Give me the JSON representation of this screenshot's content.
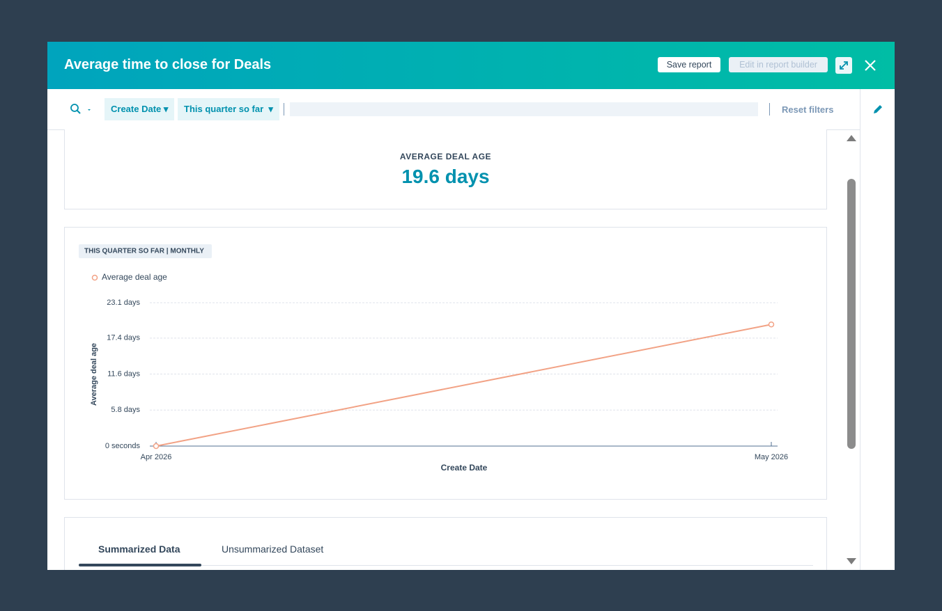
{
  "header": {
    "title": "Average time to close for Deals",
    "save": "Save report",
    "edit": "Edit in report builder"
  },
  "filters": {
    "property": "Create Date",
    "range": "This quarter so far",
    "reset": "Reset filters"
  },
  "kpi": {
    "label": "AVERAGE DEAL AGE",
    "value": "19.6 days"
  },
  "chart_data": {
    "type": "line",
    "badge": "THIS QUARTER SO FAR | MONTHLY",
    "categories": [
      "Apr 2026",
      "May 2026"
    ],
    "series": [
      {
        "name": "Average deal age",
        "color": "#f2a285",
        "values": [
          0,
          19.6
        ]
      }
    ],
    "ylabel": "Average deal age",
    "xlabel": "Create Date",
    "ylim": [
      0,
      23.1
    ],
    "yticks": [
      {
        "value": 0,
        "label": "0 seconds"
      },
      {
        "value": 5.8,
        "label": "5.8 days"
      },
      {
        "value": 11.6,
        "label": "11.6 days"
      },
      {
        "value": 17.4,
        "label": "17.4 days"
      },
      {
        "value": 23.1,
        "label": "23.1 days"
      }
    ],
    "grid": true
  },
  "tabs": [
    "Summarized Data",
    "Unsummarized Dataset"
  ]
}
